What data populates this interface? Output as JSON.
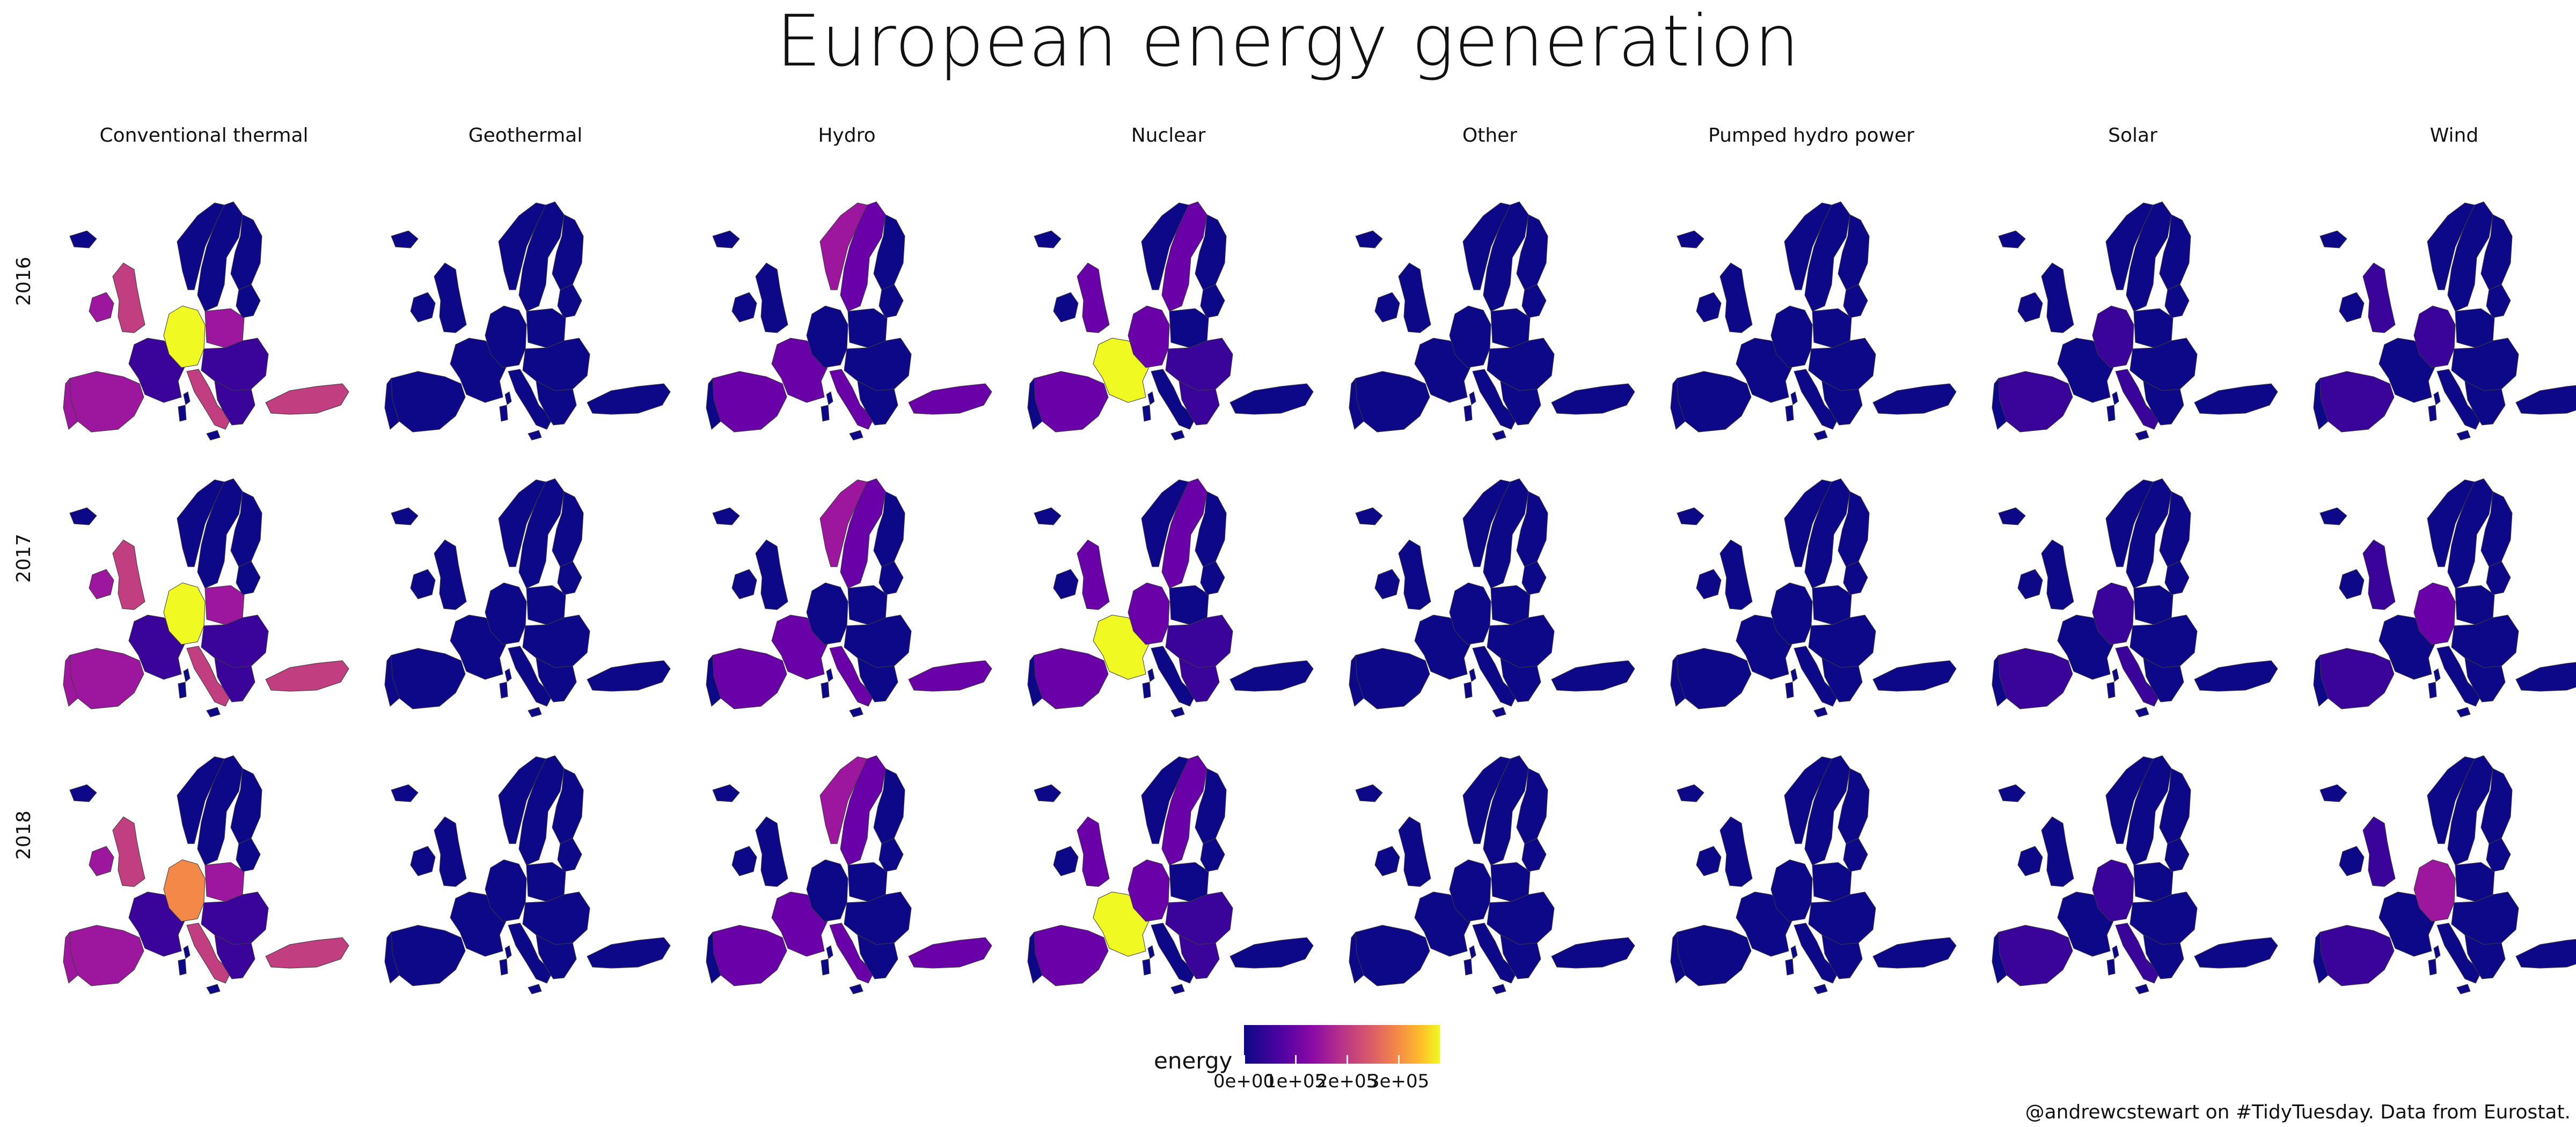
{
  "title": "European energy generation",
  "columns": [
    "Conventional thermal",
    "Geothermal",
    "Hydro",
    "Nuclear",
    "Other",
    "Pumped hydro power",
    "Solar",
    "Wind"
  ],
  "rows": [
    "2016",
    "2017",
    "2018"
  ],
  "legend": {
    "title": "energy",
    "ticks": [
      "0e+00",
      "1e+05",
      "2e+05",
      "3e+05"
    ],
    "tick_values": [
      0,
      100000,
      200000,
      300000
    ],
    "max_value": 380000
  },
  "caption": "@andrewcstewart on #TidyTuesday. Data from Eurostat.",
  "colors": {
    "base": "#0d0887",
    "low": "#3a049a",
    "mid_low": "#6a00a8",
    "mid": "#9c179e",
    "mid_high": "#c13f80",
    "high": "#f48849",
    "max": "#f0f921",
    "border": "#3a3a3a"
  },
  "panels": {
    "Conventional thermal": {
      "2016": {
        "Spain": "mid",
        "Portugal": "mid",
        "France": "low",
        "UK": "mid_high",
        "Ireland": "mid",
        "Germany": "max",
        "Poland": "mid",
        "Italy": "mid_high",
        "Turkey": "mid_high",
        "Scandinavia": "base",
        "Eastern": "low"
      },
      "2017": {
        "Spain": "mid",
        "Portugal": "mid",
        "France": "low",
        "UK": "mid_high",
        "Ireland": "mid",
        "Germany": "max",
        "Poland": "mid",
        "Italy": "mid_high",
        "Turkey": "mid_high",
        "Scandinavia": "base",
        "Eastern": "low"
      },
      "2018": {
        "Spain": "mid",
        "Portugal": "mid",
        "France": "low",
        "UK": "mid_high",
        "Ireland": "mid",
        "Germany": "high",
        "Poland": "mid",
        "Italy": "mid_high",
        "Turkey": "mid_high",
        "Scandinavia": "base",
        "Eastern": "low"
      }
    },
    "Hydro": {
      "2016": {
        "Spain": "mid_low",
        "France": "mid_low",
        "Norway": "mid",
        "Sweden": "mid_low",
        "Turkey": "mid_low",
        "Italy": "mid_low"
      },
      "2017": {
        "Spain": "mid_low",
        "France": "mid_low",
        "Norway": "mid",
        "Sweden": "mid_low",
        "Turkey": "mid_low",
        "Italy": "mid_low"
      },
      "2018": {
        "Spain": "mid_low",
        "France": "mid_low",
        "Norway": "mid",
        "Sweden": "mid_low",
        "Turkey": "mid_low",
        "Italy": "mid_low"
      }
    },
    "Nuclear": {
      "2016": {
        "France": "max",
        "Spain": "mid_low",
        "UK": "mid_low",
        "Sweden": "mid_low",
        "Germany": "mid_low",
        "Eastern": "low"
      },
      "2017": {
        "France": "max",
        "Spain": "mid_low",
        "UK": "mid_low",
        "Sweden": "mid_low",
        "Germany": "mid_low",
        "Eastern": "low"
      },
      "2018": {
        "France": "max",
        "Spain": "mid_low",
        "UK": "mid_low",
        "Sweden": "mid_low",
        "Germany": "mid_low",
        "Eastern": "low"
      }
    },
    "Solar": {
      "2016": {
        "Germany": "low",
        "Italy": "low",
        "Spain": "low"
      },
      "2017": {
        "Germany": "low",
        "Italy": "low",
        "Spain": "low"
      },
      "2018": {
        "Germany": "low",
        "Italy": "low",
        "Spain": "low"
      }
    },
    "Wind": {
      "2016": {
        "Germany": "low",
        "Spain": "low",
        "UK": "low"
      },
      "2017": {
        "Germany": "mid_low",
        "Spain": "low",
        "UK": "low"
      },
      "2018": {
        "Germany": "mid",
        "Spain": "low",
        "UK": "low"
      }
    }
  }
}
